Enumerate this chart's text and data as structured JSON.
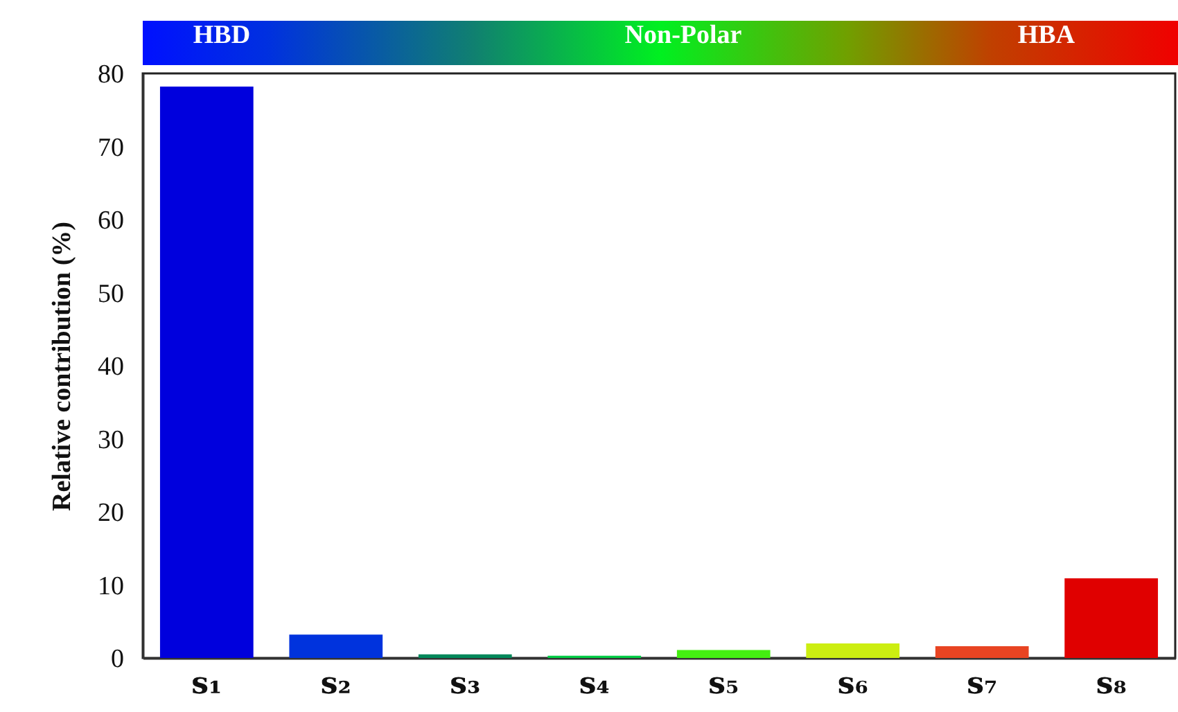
{
  "chart_data": {
    "type": "bar",
    "ylabel": "Relative contribution (%)",
    "categories": [
      "s₁",
      "s₂",
      "s₃",
      "s₄",
      "s₅",
      "s₆",
      "s₇",
      "s₈"
    ],
    "values": [
      78.2,
      3.2,
      0.5,
      0.3,
      1.1,
      2.0,
      1.6,
      10.9
    ],
    "colors": [
      "#0000dd",
      "#0033dd",
      "#00885a",
      "#00cc44",
      "#44ee11",
      "#ccee11",
      "#e84422",
      "#e00000"
    ],
    "ylim": [
      0,
      80
    ],
    "yticks": [
      0,
      10,
      20,
      30,
      40,
      50,
      60,
      70,
      80
    ],
    "annotations": [
      "HBD",
      "Non-Polar",
      "HBA"
    ]
  }
}
